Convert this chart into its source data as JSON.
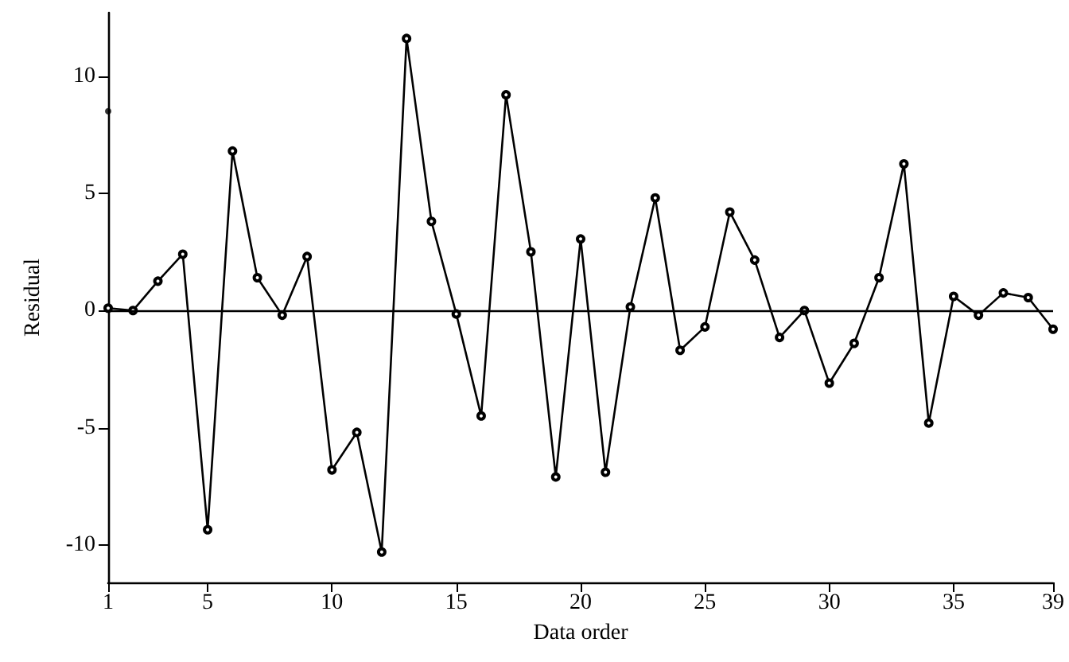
{
  "chart_data": {
    "type": "line",
    "xlabel": "Data order",
    "ylabel": "Residual",
    "xlim": [
      1,
      39
    ],
    "xticks": [
      1,
      5,
      10,
      15,
      20,
      25,
      30,
      35,
      39
    ],
    "ylim": [
      -11.6,
      12.7
    ],
    "yticks": [
      -10,
      -5,
      0,
      5,
      10
    ],
    "grid": false,
    "marker": "circle",
    "line_style": "solid",
    "ref_lines": [
      {
        "axis": "y",
        "value": 0,
        "color": "#000000"
      }
    ],
    "series": [
      {
        "color": "#000000",
        "x": [
          1,
          2,
          3,
          4,
          5,
          6,
          7,
          8,
          9,
          10,
          11,
          12,
          13,
          14,
          15,
          16,
          17,
          18,
          19,
          20,
          21,
          22,
          23,
          24,
          25,
          26,
          27,
          28,
          29,
          30,
          31,
          32,
          33,
          34,
          35,
          36,
          37,
          38,
          39
        ],
        "values": [
          0.1,
          0,
          1.25,
          2.4,
          -9.35,
          6.8,
          1.4,
          -0.2,
          2.3,
          -6.8,
          -5.2,
          -10.3,
          11.6,
          3.8,
          -0.15,
          -4.5,
          9.2,
          2.5,
          -7.1,
          3.05,
          -6.9,
          0.15,
          4.8,
          -1.7,
          -0.7,
          4.2,
          2.15,
          -1.15,
          0,
          -3.1,
          -1.4,
          1.4,
          6.25,
          -4.8,
          0.6,
          -0.2,
          0.75,
          0.55,
          -0.8
        ]
      },
      {
        "type": "scatter",
        "color": "#000000",
        "x": [
          1
        ],
        "values": [
          8.5
        ]
      }
    ]
  }
}
